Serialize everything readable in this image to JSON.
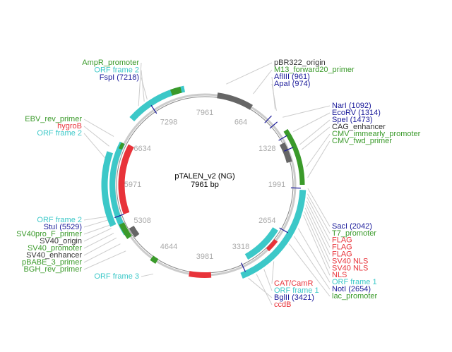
{
  "title": "pTALEN_v2 (NG)",
  "subtitle": "7961 bp",
  "ruler": [
    7961,
    664,
    1328,
    1991,
    2654,
    3318,
    3981,
    4644,
    5308,
    5971,
    6634,
    7298
  ],
  "label_groups": [
    [
      "AmpR_promoter",
      "ORF frame 2",
      "FspI (7218)"
    ],
    [
      "pBR322_origin",
      "M13_forward20_primer",
      "AflIII (961)",
      "ApaI (974)"
    ],
    [
      "NarI (1092)",
      "EcoRV (1314)",
      "SpeI (1473)",
      "CAG_enhancer",
      "CMV_immearly_promoter",
      "CMV_fwd_primer"
    ],
    [
      "EBV_rev_primer",
      "hygroB",
      "ORF frame 2"
    ],
    [
      "ORF frame 2",
      "StuI (5529)",
      "SV40pro_F_primer",
      "SV40_origin",
      "SV40_promoter",
      "SV40_enhancer",
      "pBABE_3_primer",
      "BGH_rev_primer"
    ],
    [
      "ORF frame 3"
    ],
    [
      "SacI (2042)",
      "T7_promoter",
      "FLAG",
      "FLAG",
      "FLAG",
      "SV40 NLS",
      "SV40 NLS",
      "NLS",
      "ORF frame 1",
      "NotI (2654)",
      "lac_promoter"
    ],
    [
      "CAT/CamR",
      "ORF frame 1",
      "BglII (3421)",
      "ccdB"
    ]
  ]
}
